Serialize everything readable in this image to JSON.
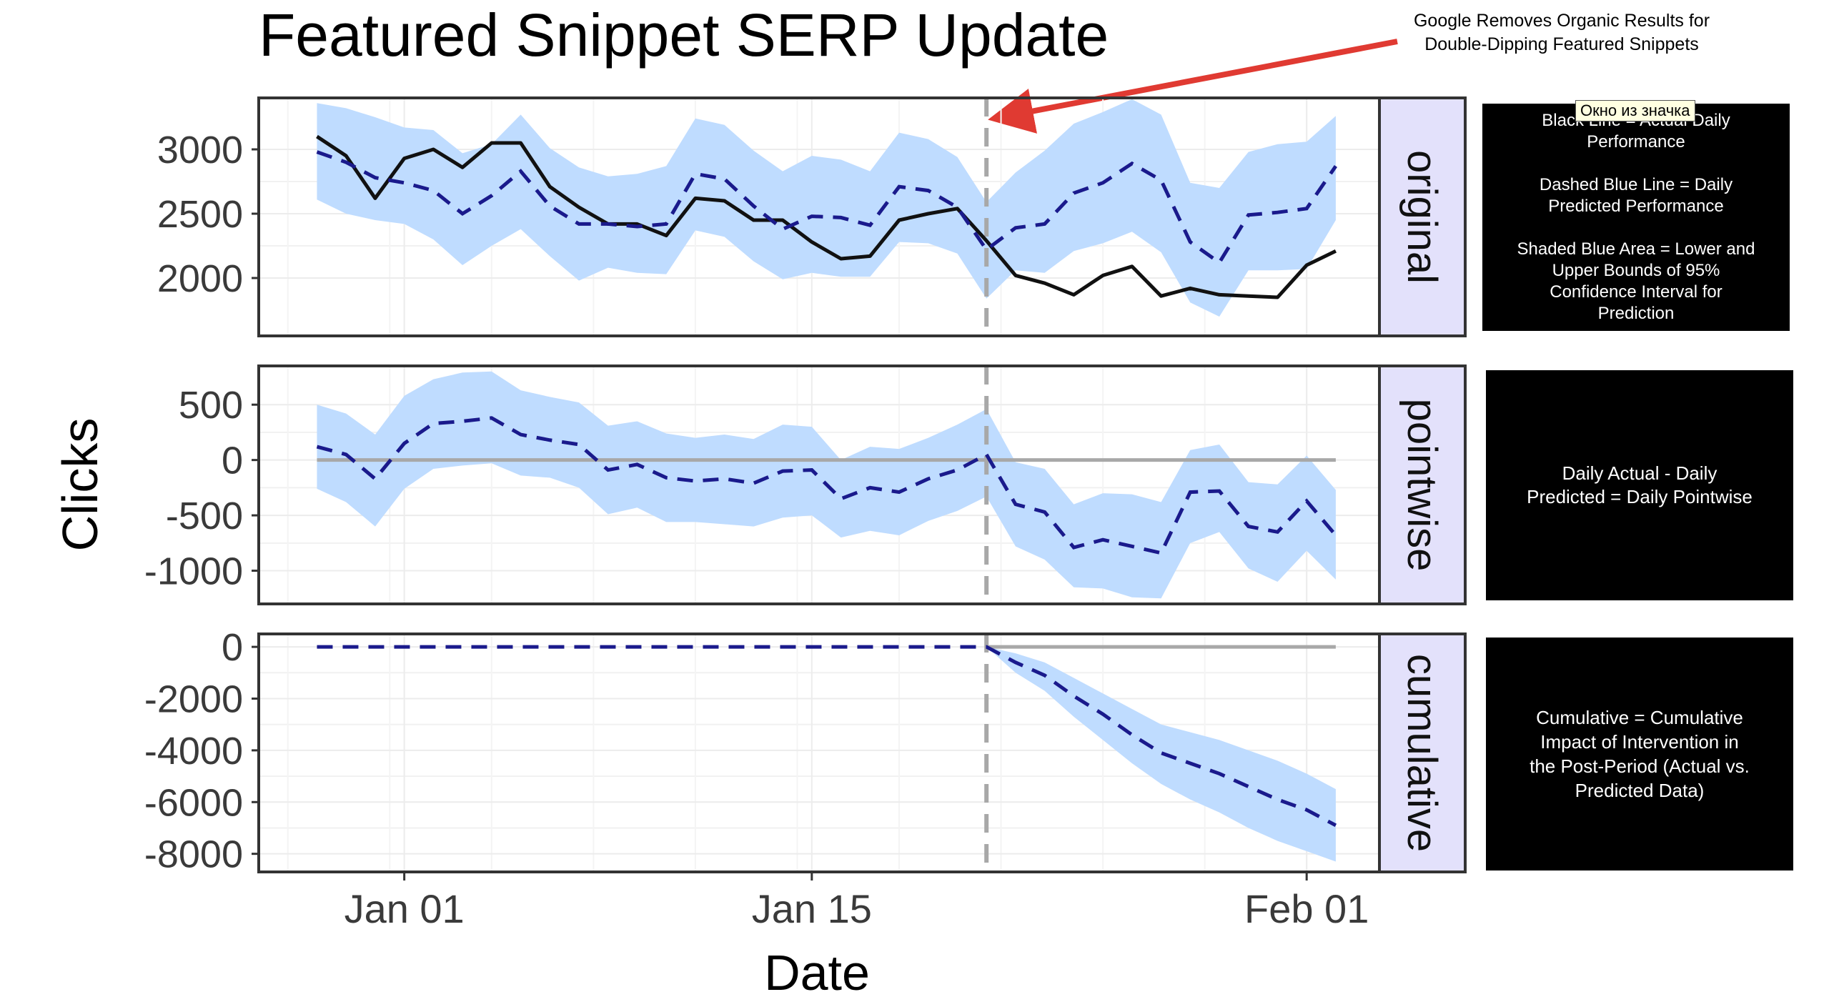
{
  "tooltip": "Окно из значка",
  "legend": {
    "original": [
      "Black Line = Actual Daily",
      "Performance",
      "",
      "Dashed Blue Line = Daily",
      "Predicted Performance",
      "",
      "Shaded Blue Area = Lower and",
      "Upper Bounds of 95%",
      "Confidence Interval for",
      "Prediction"
    ],
    "pointwise": [
      "Daily Actual - Daily",
      "Predicted = Daily Pointwise"
    ],
    "cumulative": [
      "Cumulative = Cumulative",
      "Impact of Intervention in",
      "the Post-Period (Actual vs.",
      "Predicted Data)"
    ]
  },
  "chart_data": {
    "type": "line",
    "title": "Featured Snippet SERP Update",
    "xlabel": "Date",
    "ylabel": "Clicks",
    "x_ticks": [
      "Jan 01",
      "Jan 15",
      "Feb 01"
    ],
    "x_tick_days": [
      0,
      14,
      31
    ],
    "x_range": [
      -5,
      33.5
    ],
    "intervention_day": 20,
    "annotation": [
      "Google Removes Organic Results for",
      "Double-Dipping Featured Snippets"
    ],
    "colors": {
      "band": "#bfdcff",
      "predicted": "#1a1a8c",
      "actual": "#111111",
      "zero": "#a8a8a8",
      "vline": "#a8a8a8",
      "arrow": "#e03a32"
    },
    "days": [
      -3,
      -2,
      -1,
      0,
      1,
      2,
      3,
      4,
      5,
      6,
      7,
      8,
      9,
      10,
      11,
      12,
      13,
      14,
      15,
      16,
      17,
      18,
      19,
      20,
      21,
      22,
      23,
      24,
      25,
      26,
      27,
      28,
      29,
      30,
      31,
      32
    ],
    "panels": [
      {
        "strip": "original",
        "ylim": [
          1550,
          3400
        ],
        "yticks": [
          2000,
          2500,
          3000
        ],
        "actual": [
          3100,
          2950,
          2620,
          2930,
          3000,
          2860,
          3050,
          3050,
          2710,
          2550,
          2420,
          2420,
          2330,
          2620,
          2600,
          2450,
          2450,
          2280,
          2150,
          2170,
          2450,
          2500,
          2540,
          2290,
          2020,
          1960,
          1870,
          2020,
          2090,
          1860,
          1920,
          1870,
          1860,
          1850,
          2100,
          2210
        ],
        "predicted": [
          2980,
          2900,
          2780,
          2740,
          2680,
          2500,
          2640,
          2830,
          2560,
          2420,
          2420,
          2400,
          2420,
          2810,
          2770,
          2560,
          2380,
          2480,
          2470,
          2410,
          2710,
          2680,
          2550,
          2220,
          2390,
          2420,
          2660,
          2740,
          2890,
          2760,
          2280,
          2120,
          2490,
          2510,
          2540,
          2870
        ],
        "lower": [
          2610,
          2500,
          2450,
          2420,
          2300,
          2100,
          2250,
          2380,
          2170,
          1980,
          2080,
          2040,
          2030,
          2370,
          2320,
          2130,
          1990,
          2040,
          2010,
          2010,
          2280,
          2270,
          2190,
          1840,
          2060,
          2040,
          2210,
          2270,
          2360,
          2200,
          1810,
          1700,
          2060,
          2060,
          2070,
          2450
        ],
        "upper": [
          3360,
          3320,
          3250,
          3170,
          3150,
          2970,
          3040,
          3270,
          3010,
          2860,
          2790,
          2810,
          2870,
          3240,
          3190,
          2990,
          2830,
          2950,
          2920,
          2830,
          3130,
          3080,
          2940,
          2590,
          2820,
          2990,
          3200,
          3290,
          3390,
          3270,
          2740,
          2700,
          2980,
          3040,
          3060,
          3260
        ]
      },
      {
        "strip": "pointwise",
        "ylim": [
          -1300,
          850
        ],
        "yticks": [
          -1000,
          -500,
          0,
          500
        ],
        "zero_line": true,
        "predicted": [
          120,
          50,
          -170,
          150,
          330,
          350,
          380,
          230,
          180,
          140,
          -90,
          -40,
          -160,
          -190,
          -170,
          -210,
          -100,
          -90,
          -350,
          -250,
          -290,
          -170,
          -90,
          50,
          -400,
          -470,
          -790,
          -720,
          -780,
          -840,
          -290,
          -280,
          -600,
          -650,
          -370,
          -680
        ],
        "lower": [
          -260,
          -380,
          -600,
          -260,
          -80,
          -50,
          -30,
          -140,
          -160,
          -250,
          -490,
          -430,
          -560,
          -560,
          -580,
          -600,
          -520,
          -500,
          -700,
          -640,
          -680,
          -550,
          -460,
          -330,
          -780,
          -900,
          -1150,
          -1160,
          -1240,
          -1250,
          -750,
          -650,
          -980,
          -1100,
          -820,
          -1080
        ],
        "upper": [
          500,
          420,
          230,
          580,
          730,
          790,
          800,
          630,
          570,
          520,
          310,
          350,
          240,
          200,
          230,
          190,
          320,
          300,
          0,
          120,
          100,
          200,
          320,
          460,
          -20,
          -80,
          -400,
          -300,
          -310,
          -380,
          90,
          140,
          -200,
          -220,
          40,
          -270
        ]
      },
      {
        "strip": "cumulative",
        "ylim": [
          -8700,
          500
        ],
        "yticks": [
          -8000,
          -6000,
          -4000,
          -2000,
          0
        ],
        "zero_line": true,
        "zero_from_day": 20,
        "predicted": [
          0,
          0,
          0,
          0,
          0,
          0,
          0,
          0,
          0,
          0,
          0,
          0,
          0,
          0,
          0,
          0,
          0,
          0,
          0,
          0,
          0,
          0,
          0,
          0,
          -600,
          -1100,
          -1900,
          -2600,
          -3400,
          -4100,
          -4500,
          -4900,
          -5400,
          -5900,
          -6300,
          -6900
        ],
        "lower": [
          0,
          0,
          0,
          0,
          0,
          0,
          0,
          0,
          0,
          0,
          0,
          0,
          0,
          0,
          0,
          0,
          0,
          0,
          0,
          0,
          0,
          0,
          0,
          0,
          -1000,
          -1700,
          -2700,
          -3600,
          -4500,
          -5300,
          -5900,
          -6400,
          -7000,
          -7500,
          -7900,
          -8300
        ],
        "upper": [
          0,
          0,
          0,
          0,
          0,
          0,
          0,
          0,
          0,
          0,
          0,
          0,
          0,
          0,
          0,
          0,
          0,
          0,
          0,
          0,
          0,
          0,
          0,
          0,
          -250,
          -600,
          -1200,
          -1800,
          -2400,
          -3000,
          -3300,
          -3600,
          -4000,
          -4400,
          -4900,
          -5500
        ]
      }
    ]
  }
}
